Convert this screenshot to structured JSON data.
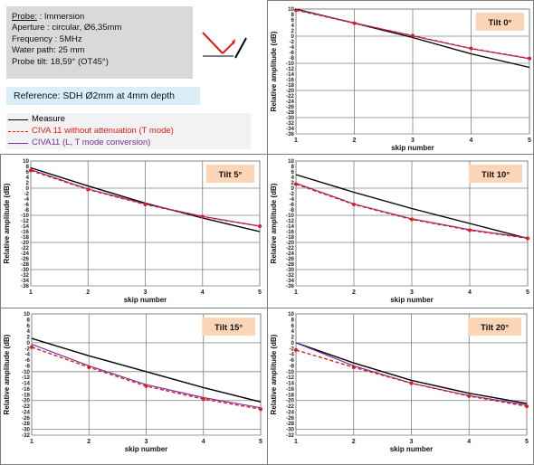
{
  "info": {
    "probe_label": "Probe:",
    "probe_value": " : Immersion",
    "aperture": "Aperture : circular, Ø6,35mm",
    "frequency": "Frequency : 5MHz",
    "water_path": "Water path: 25 mm",
    "probe_tilt": "Probe tilt: 18,59° (OT45°)"
  },
  "reference": "Reference:  SDH Ø2mm at 4mm depth",
  "legend": [
    {
      "label": "Measure",
      "color": "#000000",
      "dash": "none"
    },
    {
      "label": "CIVA 11 without attenuation (T mode)",
      "color": "#e31a1c",
      "dash": "4,3"
    },
    {
      "label": "CIVA11 (L, T mode conversion)",
      "color": "#7030a0",
      "dash": "none"
    }
  ],
  "colors": {
    "measure": "#000000",
    "civa_t": "#e31a1c",
    "civa_lt": "#7030a0",
    "tag_bg": "#fbd5b5",
    "grid": "#808080"
  },
  "chart_data": [
    {
      "type": "line",
      "title": "Tilt 0°",
      "xlabel": "skip number",
      "ylabel": "Relative amplitude (dB)",
      "x": [
        1,
        2,
        3,
        4,
        5
      ],
      "ylim": [
        -36,
        10
      ],
      "ytick_step": 2,
      "grid": true,
      "series": [
        {
          "name": "Measure",
          "values": [
            10,
            4.8,
            -0.5,
            -6.5,
            -11.5
          ]
        },
        {
          "name": "CIVA 11 without attenuation (T mode)",
          "values": [
            9.6,
            4.8,
            0.2,
            -4.5,
            -8.2
          ]
        },
        {
          "name": "CIVA11 (L, T mode conversion)",
          "values": [
            9.8,
            4.9,
            0.1,
            -4.6,
            -8.3
          ]
        }
      ]
    },
    {
      "type": "line",
      "title": "Tilt 5°",
      "xlabel": "skip number",
      "ylabel": "Relative amplitude (dB)",
      "x": [
        1,
        2,
        3,
        4,
        5
      ],
      "ylim": [
        -36,
        10
      ],
      "ytick_step": 2,
      "grid": true,
      "series": [
        {
          "name": "Measure",
          "values": [
            7.5,
            0.8,
            -5.5,
            -11,
            -16
          ]
        },
        {
          "name": "CIVA 11 without attenuation (T mode)",
          "values": [
            6.5,
            -0.5,
            -6,
            -10.5,
            -14
          ]
        },
        {
          "name": "CIVA11 (L, T mode conversion)",
          "values": [
            6.8,
            -0.3,
            -5.8,
            -10.4,
            -14
          ]
        }
      ]
    },
    {
      "type": "line",
      "title": "Tilt 10°",
      "xlabel": "skip number",
      "ylabel": "Relative amplitude (dB)",
      "x": [
        1,
        2,
        3,
        4,
        5
      ],
      "ylim": [
        -36,
        10
      ],
      "ytick_step": 2,
      "grid": true,
      "series": [
        {
          "name": "Measure",
          "values": [
            5,
            -1.5,
            -7.5,
            -13,
            -18.5
          ]
        },
        {
          "name": "CIVA 11 without attenuation (T mode)",
          "values": [
            1.5,
            -6,
            -11.5,
            -15.5,
            -18.5
          ]
        },
        {
          "name": "CIVA11 (L, T mode conversion)",
          "values": [
            1.8,
            -5.8,
            -11.3,
            -15.3,
            -18.3
          ]
        }
      ]
    },
    {
      "type": "line",
      "title": "Tilt 15°",
      "xlabel": "skip number",
      "ylabel": "Relative amplitude (dB)",
      "x": [
        1,
        2,
        3,
        4,
        5
      ],
      "ylim": [
        -32,
        10
      ],
      "ytick_step": 2,
      "grid": true,
      "series": [
        {
          "name": "Measure",
          "values": [
            1.5,
            -4.5,
            -10,
            -15.5,
            -20.5
          ]
        },
        {
          "name": "CIVA 11 without attenuation (T mode)",
          "values": [
            -1.5,
            -8.5,
            -15,
            -19.5,
            -23
          ]
        },
        {
          "name": "CIVA11 (L, T mode conversion)",
          "values": [
            -0.5,
            -8,
            -14.5,
            -19,
            -22.5
          ]
        }
      ]
    },
    {
      "type": "line",
      "title": "Tilt 20°",
      "xlabel": "skip number",
      "ylabel": "Relative amplitude (dB)",
      "x": [
        1,
        2,
        3,
        4,
        5
      ],
      "ylim": [
        -32,
        10
      ],
      "ytick_step": 2,
      "grid": true,
      "series": [
        {
          "name": "Measure",
          "values": [
            0,
            -7,
            -13,
            -17.5,
            -21
          ]
        },
        {
          "name": "CIVA 11 without attenuation (T mode)",
          "values": [
            -2.5,
            -8.5,
            -14,
            -18.5,
            -22
          ]
        },
        {
          "name": "CIVA11 (L, T mode conversion)",
          "values": [
            0,
            -8,
            -14,
            -18.3,
            -21.5
          ]
        }
      ]
    }
  ]
}
